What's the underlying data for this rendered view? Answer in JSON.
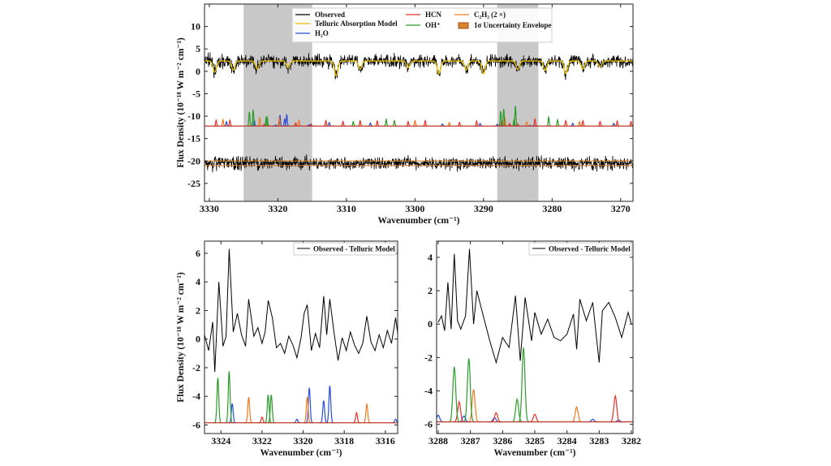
{
  "colors": {
    "observed": "#000000",
    "telluric": "#e8c000",
    "H2O": "#2a4fd6",
    "HCN": "#e8312a",
    "OH": "#2a9d2a",
    "C2H2": "#f07a20",
    "envelope": "#d9822b",
    "masked_region": "#c8c8c8"
  },
  "chart_data": [
    {
      "id": "overview",
      "type": "line",
      "xlabel": "Wavenumber (cm⁻¹)",
      "ylabel": "Flux Density (10⁻¹⁸ W m⁻² cm⁻¹)",
      "xlim": [
        3330.7,
        3268.2
      ],
      "ylim": [
        -29,
        15
      ],
      "xticks": [
        3330,
        3320,
        3310,
        3300,
        3290,
        3280,
        3270
      ],
      "yticks": [
        10,
        5,
        0,
        -5,
        -10,
        -15,
        -20,
        -25
      ],
      "masked_regions": [
        [
          3325,
          3315
        ],
        [
          3288,
          3282
        ]
      ],
      "legend": {
        "placement": "top-center",
        "entries": [
          {
            "key": "observed",
            "label": "Observed"
          },
          {
            "key": "telluric",
            "label": "Telluric Absorption Model"
          },
          {
            "key": "H2O",
            "label": "H₂O"
          },
          {
            "key": "HCN",
            "label": "HCN"
          },
          {
            "key": "OH",
            "label": "OH⁺"
          },
          {
            "key": "C2H2",
            "label": "C₂H₂ (2 ×)"
          },
          {
            "key": "envelope",
            "label": "1σ Uncertainty Envelope"
          }
        ]
      },
      "observed_continuum": 2.3,
      "telluric_dips": [
        [
          3329.2,
          2.5
        ],
        [
          3326.5,
          2.0
        ],
        [
          3323.0,
          1.8
        ],
        [
          3318.5,
          1.5
        ],
        [
          3311.5,
          3.3
        ],
        [
          3308.0,
          1.8
        ],
        [
          3301.0,
          1.5
        ],
        [
          3296.5,
          2.8
        ],
        [
          3292.5,
          2.0
        ],
        [
          3290.0,
          2.8
        ],
        [
          3285.0,
          1.9
        ],
        [
          3281.0,
          2.1
        ],
        [
          3278.0,
          2.8
        ],
        [
          3275.5,
          1.8
        ],
        [
          3273.0,
          1.3
        ]
      ],
      "model_baseline": -12.2,
      "residual_level": -20.5,
      "envelope_halfwidth": 0.5
    },
    {
      "id": "zoom-3325-3315",
      "type": "line",
      "xlabel": "Wavenumber (cm⁻¹)",
      "ylabel": "Flux Density (10⁻¹⁸ W m⁻² cm⁻¹)",
      "xlim": [
        3324.8,
        3315.4
      ],
      "ylim": [
        -6.6,
        6.85
      ],
      "xticks": [
        3324,
        3322,
        3320,
        3318,
        3316
      ],
      "yticks": [
        6,
        4,
        2,
        0,
        -2,
        -4,
        -6
      ],
      "legend": {
        "placement": "top-right",
        "entries": [
          {
            "key": "observed",
            "label": "Observed - Telluric Model"
          }
        ]
      },
      "model_baseline": -5.85,
      "observed": [
        [
          3324.8,
          0.3
        ],
        [
          3324.6,
          -0.8
        ],
        [
          3324.4,
          1.2
        ],
        [
          3324.3,
          -2.3
        ],
        [
          3324.1,
          4.0
        ],
        [
          3323.9,
          -0.5
        ],
        [
          3323.75,
          0.2
        ],
        [
          3323.6,
          6.3
        ],
        [
          3323.4,
          0.5
        ],
        [
          3323.2,
          1.8
        ],
        [
          3323.0,
          0.3
        ],
        [
          3322.8,
          -0.5
        ],
        [
          3322.65,
          2.8
        ],
        [
          3322.4,
          0.2
        ],
        [
          3322.2,
          0.8
        ],
        [
          3322.0,
          -0.3
        ],
        [
          3321.85,
          0.5
        ],
        [
          3321.7,
          2.7
        ],
        [
          3321.5,
          1.5
        ],
        [
          3321.3,
          -0.6
        ],
        [
          3321.1,
          -0.3
        ],
        [
          3320.9,
          -1.0
        ],
        [
          3320.7,
          0.2
        ],
        [
          3320.5,
          -0.4
        ],
        [
          3320.3,
          -1.3
        ],
        [
          3320.1,
          0.1
        ],
        [
          3319.95,
          1.8
        ],
        [
          3319.8,
          2.4
        ],
        [
          3319.6,
          -0.8
        ],
        [
          3319.4,
          0.4
        ],
        [
          3319.2,
          -0.6
        ],
        [
          3319.0,
          3.0
        ],
        [
          3318.85,
          0.3
        ],
        [
          3318.7,
          2.8
        ],
        [
          3318.5,
          0.5
        ],
        [
          3318.3,
          -1.5
        ],
        [
          3318.1,
          0.1
        ],
        [
          3317.9,
          -0.8
        ],
        [
          3317.7,
          0.5
        ],
        [
          3317.5,
          -0.4
        ],
        [
          3317.3,
          -1.0
        ],
        [
          3317.1,
          -0.3
        ],
        [
          3316.9,
          1.6
        ],
        [
          3316.7,
          -0.2
        ],
        [
          3316.5,
          -0.8
        ],
        [
          3316.3,
          0.3
        ],
        [
          3316.1,
          -0.6
        ],
        [
          3315.9,
          0.6
        ],
        [
          3315.7,
          -0.3
        ],
        [
          3315.5,
          1.5
        ],
        [
          3315.4,
          0.4
        ]
      ]
    },
    {
      "id": "zoom-3288-3282",
      "type": "line",
      "xlabel": "Wavenumber (cm⁻¹)",
      "ylabel": "",
      "xlim": [
        3288.05,
        3281.95
      ],
      "ylim": [
        -6.55,
        4.97
      ],
      "xticks": [
        3288,
        3287,
        3286,
        3285,
        3284,
        3283,
        3282
      ],
      "yticks": [
        4,
        2,
        0,
        -2,
        -4,
        -6
      ],
      "legend": {
        "placement": "top-right",
        "entries": [
          {
            "key": "observed",
            "label": "Observed - Telluric Model"
          }
        ]
      },
      "model_baseline": -5.85,
      "observed": [
        [
          3288.0,
          0.1
        ],
        [
          3287.9,
          0.5
        ],
        [
          3287.8,
          -0.4
        ],
        [
          3287.7,
          2.5
        ],
        [
          3287.6,
          -0.3
        ],
        [
          3287.5,
          4.2
        ],
        [
          3287.4,
          0.2
        ],
        [
          3287.3,
          -0.3
        ],
        [
          3287.15,
          0.5
        ],
        [
          3287.03,
          4.5
        ],
        [
          3286.9,
          0.0
        ],
        [
          3286.8,
          2.0
        ],
        [
          3286.6,
          0.5
        ],
        [
          3286.4,
          -1.0
        ],
        [
          3286.2,
          -2.3
        ],
        [
          3286.0,
          -0.8
        ],
        [
          3285.8,
          -1.4
        ],
        [
          3285.6,
          1.7
        ],
        [
          3285.45,
          -2.2
        ],
        [
          3285.3,
          1.6
        ],
        [
          3285.1,
          -1.0
        ],
        [
          3285.0,
          0.7
        ],
        [
          3284.8,
          -0.6
        ],
        [
          3284.6,
          0.3
        ],
        [
          3284.4,
          -0.8
        ],
        [
          3284.2,
          -1.0
        ],
        [
          3284.0,
          -0.6
        ],
        [
          3283.8,
          0.6
        ],
        [
          3283.7,
          -1.5
        ],
        [
          3283.6,
          1.5
        ],
        [
          3283.4,
          0.2
        ],
        [
          3283.2,
          1.3
        ],
        [
          3283.0,
          -2.3
        ],
        [
          3282.9,
          0.8
        ],
        [
          3282.7,
          1.3
        ],
        [
          3282.5,
          0.4
        ],
        [
          3282.3,
          -0.8
        ],
        [
          3282.1,
          0.7
        ],
        [
          3282.0,
          0.0
        ]
      ]
    }
  ],
  "model_lines": {
    "OH": [
      [
        3324.15,
        3.15
      ],
      [
        3323.6,
        3.6
      ],
      [
        3321.7,
        1.95
      ],
      [
        3321.55,
        1.95
      ],
      [
        3287.5,
        3.3
      ],
      [
        3287.05,
        3.8
      ],
      [
        3285.55,
        1.35
      ],
      [
        3285.35,
        4.45
      ],
      [
        3304.2,
        1.5
      ],
      [
        3303.0,
        1.2
      ],
      [
        3280.5,
        2.0
      ],
      [
        3279.2,
        1.4
      ],
      [
        3309.0,
        1.0
      ]
    ],
    "H2O": [
      [
        3323.45,
        1.35
      ],
      [
        3319.7,
        2.45
      ],
      [
        3319.0,
        1.55
      ],
      [
        3318.7,
        2.6
      ],
      [
        3320.3,
        0.25
      ],
      [
        3315.5,
        0.25
      ],
      [
        3315.2,
        0.45
      ],
      [
        3288.0,
        0.4
      ],
      [
        3287.2,
        0.35
      ],
      [
        3286.25,
        0.25
      ],
      [
        3283.2,
        0.15
      ],
      [
        3282.4,
        0.1
      ],
      [
        3327.5,
        1.0
      ],
      [
        3312.5,
        0.8
      ],
      [
        3306.5,
        0.7
      ],
      [
        3296.0,
        0.5
      ],
      [
        3290.5,
        0.6
      ],
      [
        3277.0,
        0.6
      ],
      [
        3271.0,
        0.6
      ]
    ],
    "HCN": [
      [
        3322.0,
        0.4
      ],
      [
        3317.4,
        0.7
      ],
      [
        3315.15,
        0.35
      ],
      [
        3287.35,
        1.2
      ],
      [
        3286.2,
        0.55
      ],
      [
        3285.0,
        0.45
      ],
      [
        3282.5,
        1.55
      ],
      [
        3329.0,
        1.3
      ],
      [
        3327.0,
        1.3
      ],
      [
        3313.0,
        1.2
      ],
      [
        3310.5,
        1.0
      ],
      [
        3308.0,
        1.2
      ],
      [
        3305.5,
        1.1
      ],
      [
        3301.0,
        1.0
      ],
      [
        3298.5,
        1.2
      ],
      [
        3293.5,
        0.8
      ],
      [
        3291.0,
        1.1
      ],
      [
        3278.0,
        1.2
      ],
      [
        3275.5,
        1.2
      ],
      [
        3273.0,
        1.0
      ],
      [
        3270.5,
        1.1
      ],
      [
        3268.5,
        1.0
      ]
    ],
    "C2H2": [
      [
        3322.65,
        1.8
      ],
      [
        3319.8,
        1.8
      ],
      [
        3316.9,
        1.3
      ],
      [
        3286.9,
        1.95
      ],
      [
        3283.7,
        0.9
      ],
      [
        3328.0,
        1.4
      ],
      [
        3300.0,
        1.2
      ],
      [
        3295.0,
        0.8
      ],
      [
        3276.0,
        1.0
      ]
    ]
  }
}
